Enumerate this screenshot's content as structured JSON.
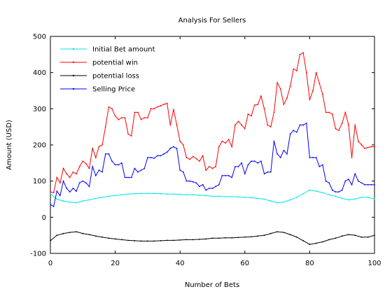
{
  "chart_data": {
    "type": "line",
    "title": "Analysis For Sellers",
    "xlabel": "Number of Bets",
    "ylabel": "Amount (USD)",
    "xlim": [
      0,
      100
    ],
    "ylim": [
      -100,
      500
    ],
    "x_ticks": [
      0,
      20,
      40,
      60,
      80,
      100
    ],
    "y_ticks": [
      -100,
      0,
      100,
      200,
      300,
      400,
      500
    ],
    "legend_position": "top-left",
    "grid": false,
    "series": [
      {
        "name": "Initial Bet amount",
        "color": "#00e5e5",
        "x": [
          0,
          2,
          4,
          6,
          8,
          10,
          12,
          14,
          16,
          18,
          20,
          22,
          24,
          26,
          28,
          30,
          32,
          34,
          36,
          38,
          40,
          42,
          44,
          46,
          48,
          50,
          52,
          54,
          56,
          58,
          60,
          62,
          64,
          66,
          68,
          70,
          72,
          74,
          76,
          78,
          80,
          82,
          84,
          86,
          88,
          90,
          92,
          94,
          96,
          98,
          100
        ],
        "values": [
          65,
          50,
          45,
          42,
          40,
          45,
          48,
          52,
          55,
          58,
          60,
          62,
          64,
          65,
          66,
          66,
          66,
          65,
          64,
          64,
          63,
          62,
          62,
          61,
          60,
          58,
          58,
          57,
          57,
          56,
          55,
          54,
          52,
          50,
          45,
          40,
          42,
          48,
          55,
          65,
          75,
          72,
          68,
          62,
          58,
          52,
          48,
          50,
          55,
          55,
          50
        ]
      },
      {
        "name": "potential win",
        "color": "#ff0000",
        "x": [
          0,
          1,
          2,
          3,
          4,
          5,
          6,
          7,
          8,
          9,
          10,
          11,
          12,
          13,
          14,
          15,
          16,
          17,
          18,
          19,
          20,
          21,
          22,
          23,
          24,
          25,
          26,
          27,
          28,
          29,
          30,
          31,
          32,
          33,
          34,
          35,
          36,
          37,
          38,
          39,
          40,
          41,
          42,
          43,
          44,
          45,
          46,
          47,
          48,
          49,
          50,
          51,
          52,
          53,
          54,
          55,
          56,
          57,
          58,
          59,
          60,
          61,
          62,
          63,
          64,
          65,
          66,
          67,
          68,
          69,
          70,
          71,
          72,
          73,
          74,
          75,
          76,
          77,
          78,
          79,
          80,
          81,
          82,
          83,
          84,
          85,
          86,
          87,
          88,
          89,
          90,
          91,
          92,
          93,
          94,
          95,
          96,
          97,
          98,
          99,
          100
        ],
        "values": [
          70,
          68,
          110,
          95,
          135,
          120,
          110,
          125,
          120,
          140,
          155,
          148,
          135,
          190,
          165,
          195,
          200,
          250,
          305,
          300,
          280,
          270,
          275,
          275,
          230,
          225,
          290,
          290,
          270,
          275,
          275,
          300,
          300,
          305,
          308,
          312,
          315,
          255,
          298,
          255,
          210,
          200,
          165,
          160,
          168,
          162,
          155,
          170,
          130,
          140,
          135,
          140,
          195,
          210,
          205,
          215,
          195,
          255,
          265,
          255,
          245,
          285,
          280,
          310,
          312,
          335,
          300,
          255,
          250,
          290,
          372,
          355,
          312,
          330,
          362,
          410,
          405,
          450,
          455,
          400,
          325,
          350,
          400,
          370,
          340,
          290,
          290,
          285,
          245,
          240,
          260,
          290,
          255,
          165,
          255,
          210,
          200,
          190,
          193,
          195,
          195
        ]
      },
      {
        "name": "potential loss",
        "color": "#000000",
        "x": [
          0,
          2,
          4,
          6,
          8,
          10,
          12,
          14,
          16,
          18,
          20,
          22,
          24,
          26,
          28,
          30,
          32,
          34,
          36,
          38,
          40,
          42,
          44,
          46,
          48,
          50,
          52,
          54,
          56,
          58,
          60,
          62,
          64,
          66,
          68,
          70,
          72,
          74,
          76,
          78,
          80,
          82,
          84,
          86,
          88,
          90,
          92,
          94,
          96,
          98,
          100
        ],
        "values": [
          -65,
          -50,
          -45,
          -42,
          -40,
          -45,
          -48,
          -52,
          -55,
          -58,
          -60,
          -62,
          -64,
          -65,
          -66,
          -66,
          -66,
          -65,
          -64,
          -64,
          -63,
          -62,
          -62,
          -61,
          -60,
          -58,
          -58,
          -57,
          -57,
          -56,
          -55,
          -54,
          -52,
          -50,
          -45,
          -40,
          -42,
          -48,
          -55,
          -65,
          -75,
          -72,
          -68,
          -62,
          -58,
          -52,
          -48,
          -50,
          -55,
          -55,
          -50
        ]
      },
      {
        "name": "Selling Price",
        "color": "#0000ff",
        "x": [
          0,
          1,
          2,
          3,
          4,
          5,
          6,
          7,
          8,
          9,
          10,
          11,
          12,
          13,
          14,
          15,
          16,
          17,
          18,
          19,
          20,
          21,
          22,
          23,
          24,
          25,
          26,
          27,
          28,
          29,
          30,
          31,
          32,
          33,
          34,
          35,
          36,
          37,
          38,
          39,
          40,
          41,
          42,
          43,
          44,
          45,
          46,
          47,
          48,
          49,
          50,
          51,
          52,
          53,
          54,
          55,
          56,
          57,
          58,
          59,
          60,
          61,
          62,
          63,
          64,
          65,
          66,
          67,
          68,
          69,
          70,
          71,
          72,
          73,
          74,
          75,
          76,
          77,
          78,
          79,
          80,
          81,
          82,
          83,
          84,
          85,
          86,
          87,
          88,
          89,
          90,
          91,
          92,
          93,
          94,
          95,
          96,
          97,
          98,
          99,
          100
        ],
        "values": [
          35,
          30,
          72,
          60,
          100,
          80,
          70,
          80,
          72,
          95,
          100,
          95,
          85,
          140,
          115,
          130,
          125,
          175,
          175,
          155,
          145,
          145,
          150,
          110,
          110,
          110,
          135,
          125,
          130,
          135,
          165,
          165,
          163,
          170,
          170,
          175,
          180,
          190,
          195,
          190,
          130,
          125,
          100,
          100,
          98,
          95,
          85,
          90,
          75,
          80,
          80,
          85,
          90,
          115,
          115,
          115,
          110,
          140,
          140,
          150,
          120,
          145,
          155,
          155,
          150,
          155,
          120,
          125,
          125,
          210,
          175,
          165,
          185,
          175,
          230,
          240,
          235,
          255,
          255,
          260,
          165,
          165,
          165,
          140,
          145,
          100,
          95,
          75,
          70,
          70,
          75,
          100,
          105,
          90,
          120,
          100,
          95,
          90,
          90,
          90,
          90
        ]
      }
    ]
  }
}
